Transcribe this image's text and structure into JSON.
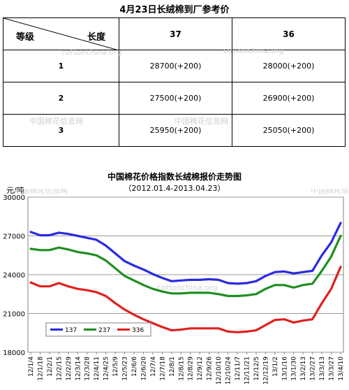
{
  "table": {
    "title": "4月23日长绒棉到厂参考价",
    "header": {
      "grade_label": "等级",
      "length_label": "长度",
      "col1": "37",
      "col2": "36"
    },
    "rows": [
      {
        "grade": "1",
        "v37": "28700(+200)",
        "v36": "28000(+200)"
      },
      {
        "grade": "2",
        "v37": "27500(+200)",
        "v36": "26900(+200)"
      },
      {
        "grade": "3",
        "v37": "25950(+200)",
        "v36": "25050(+200)"
      }
    ]
  },
  "watermarks": {
    "site": "cottonchina.org",
    "brand": "中国棉花信息网"
  },
  "chart_data": {
    "type": "line",
    "title": "中国棉花价格指数长绒棉报价走势图",
    "subtitle": "（2012.01.4-2013.04.23）",
    "ylabel": "元/吨",
    "ylim": [
      18000,
      30000
    ],
    "yticks": [
      18000,
      21000,
      24000,
      27000,
      30000
    ],
    "grid": true,
    "legend_position": "bottom-left",
    "x": [
      "12/1/4",
      "12/1/18",
      "12/2/1",
      "12/2/15",
      "12/2/29",
      "12/3/14",
      "12/3/28",
      "12/4/11",
      "12/4/25",
      "12/5/9",
      "12/5/23",
      "12/6/6",
      "12/6/20",
      "12/7/4",
      "12/7/18",
      "12/8/1",
      "12/8/15",
      "12/8/29",
      "12/9/12",
      "12/9/26",
      "12/10/10",
      "12/10/24",
      "12/11/7",
      "12/11/21",
      "12/12/5",
      "12/12/19",
      "13/1/2",
      "13/1/16",
      "13/1/30",
      "13/2/13",
      "13/2/27",
      "13/3/13",
      "13/3/27",
      "13/4/10"
    ],
    "series": [
      {
        "name": "137",
        "color": "#2a2ae0",
        "values": [
          27300,
          27050,
          27050,
          27250,
          27150,
          27000,
          26850,
          26700,
          26250,
          25650,
          25050,
          24700,
          24400,
          24050,
          23750,
          23500,
          23550,
          23600,
          23600,
          23650,
          23600,
          23350,
          23300,
          23350,
          23500,
          23900,
          24200,
          24250,
          24100,
          24200,
          24300,
          25500,
          26500,
          28000
        ]
      },
      {
        "name": "237",
        "color": "#1e8f1e",
        "values": [
          26000,
          25900,
          25900,
          26100,
          25950,
          25750,
          25650,
          25500,
          25100,
          24500,
          23900,
          23550,
          23200,
          22900,
          22700,
          22550,
          22550,
          22600,
          22600,
          22600,
          22500,
          22350,
          22350,
          22400,
          22500,
          22900,
          23200,
          23200,
          23000,
          23200,
          23300,
          24300,
          25400,
          27000
        ]
      },
      {
        "name": "336",
        "color": "#e02020",
        "values": [
          23400,
          23100,
          23100,
          23350,
          23100,
          22900,
          22800,
          22650,
          22350,
          21800,
          21300,
          20900,
          20550,
          20250,
          19950,
          19700,
          19750,
          19850,
          19850,
          19850,
          19850,
          19600,
          19550,
          19600,
          19700,
          20100,
          20500,
          20550,
          20300,
          20450,
          20550,
          21800,
          22900,
          24600
        ]
      }
    ]
  }
}
